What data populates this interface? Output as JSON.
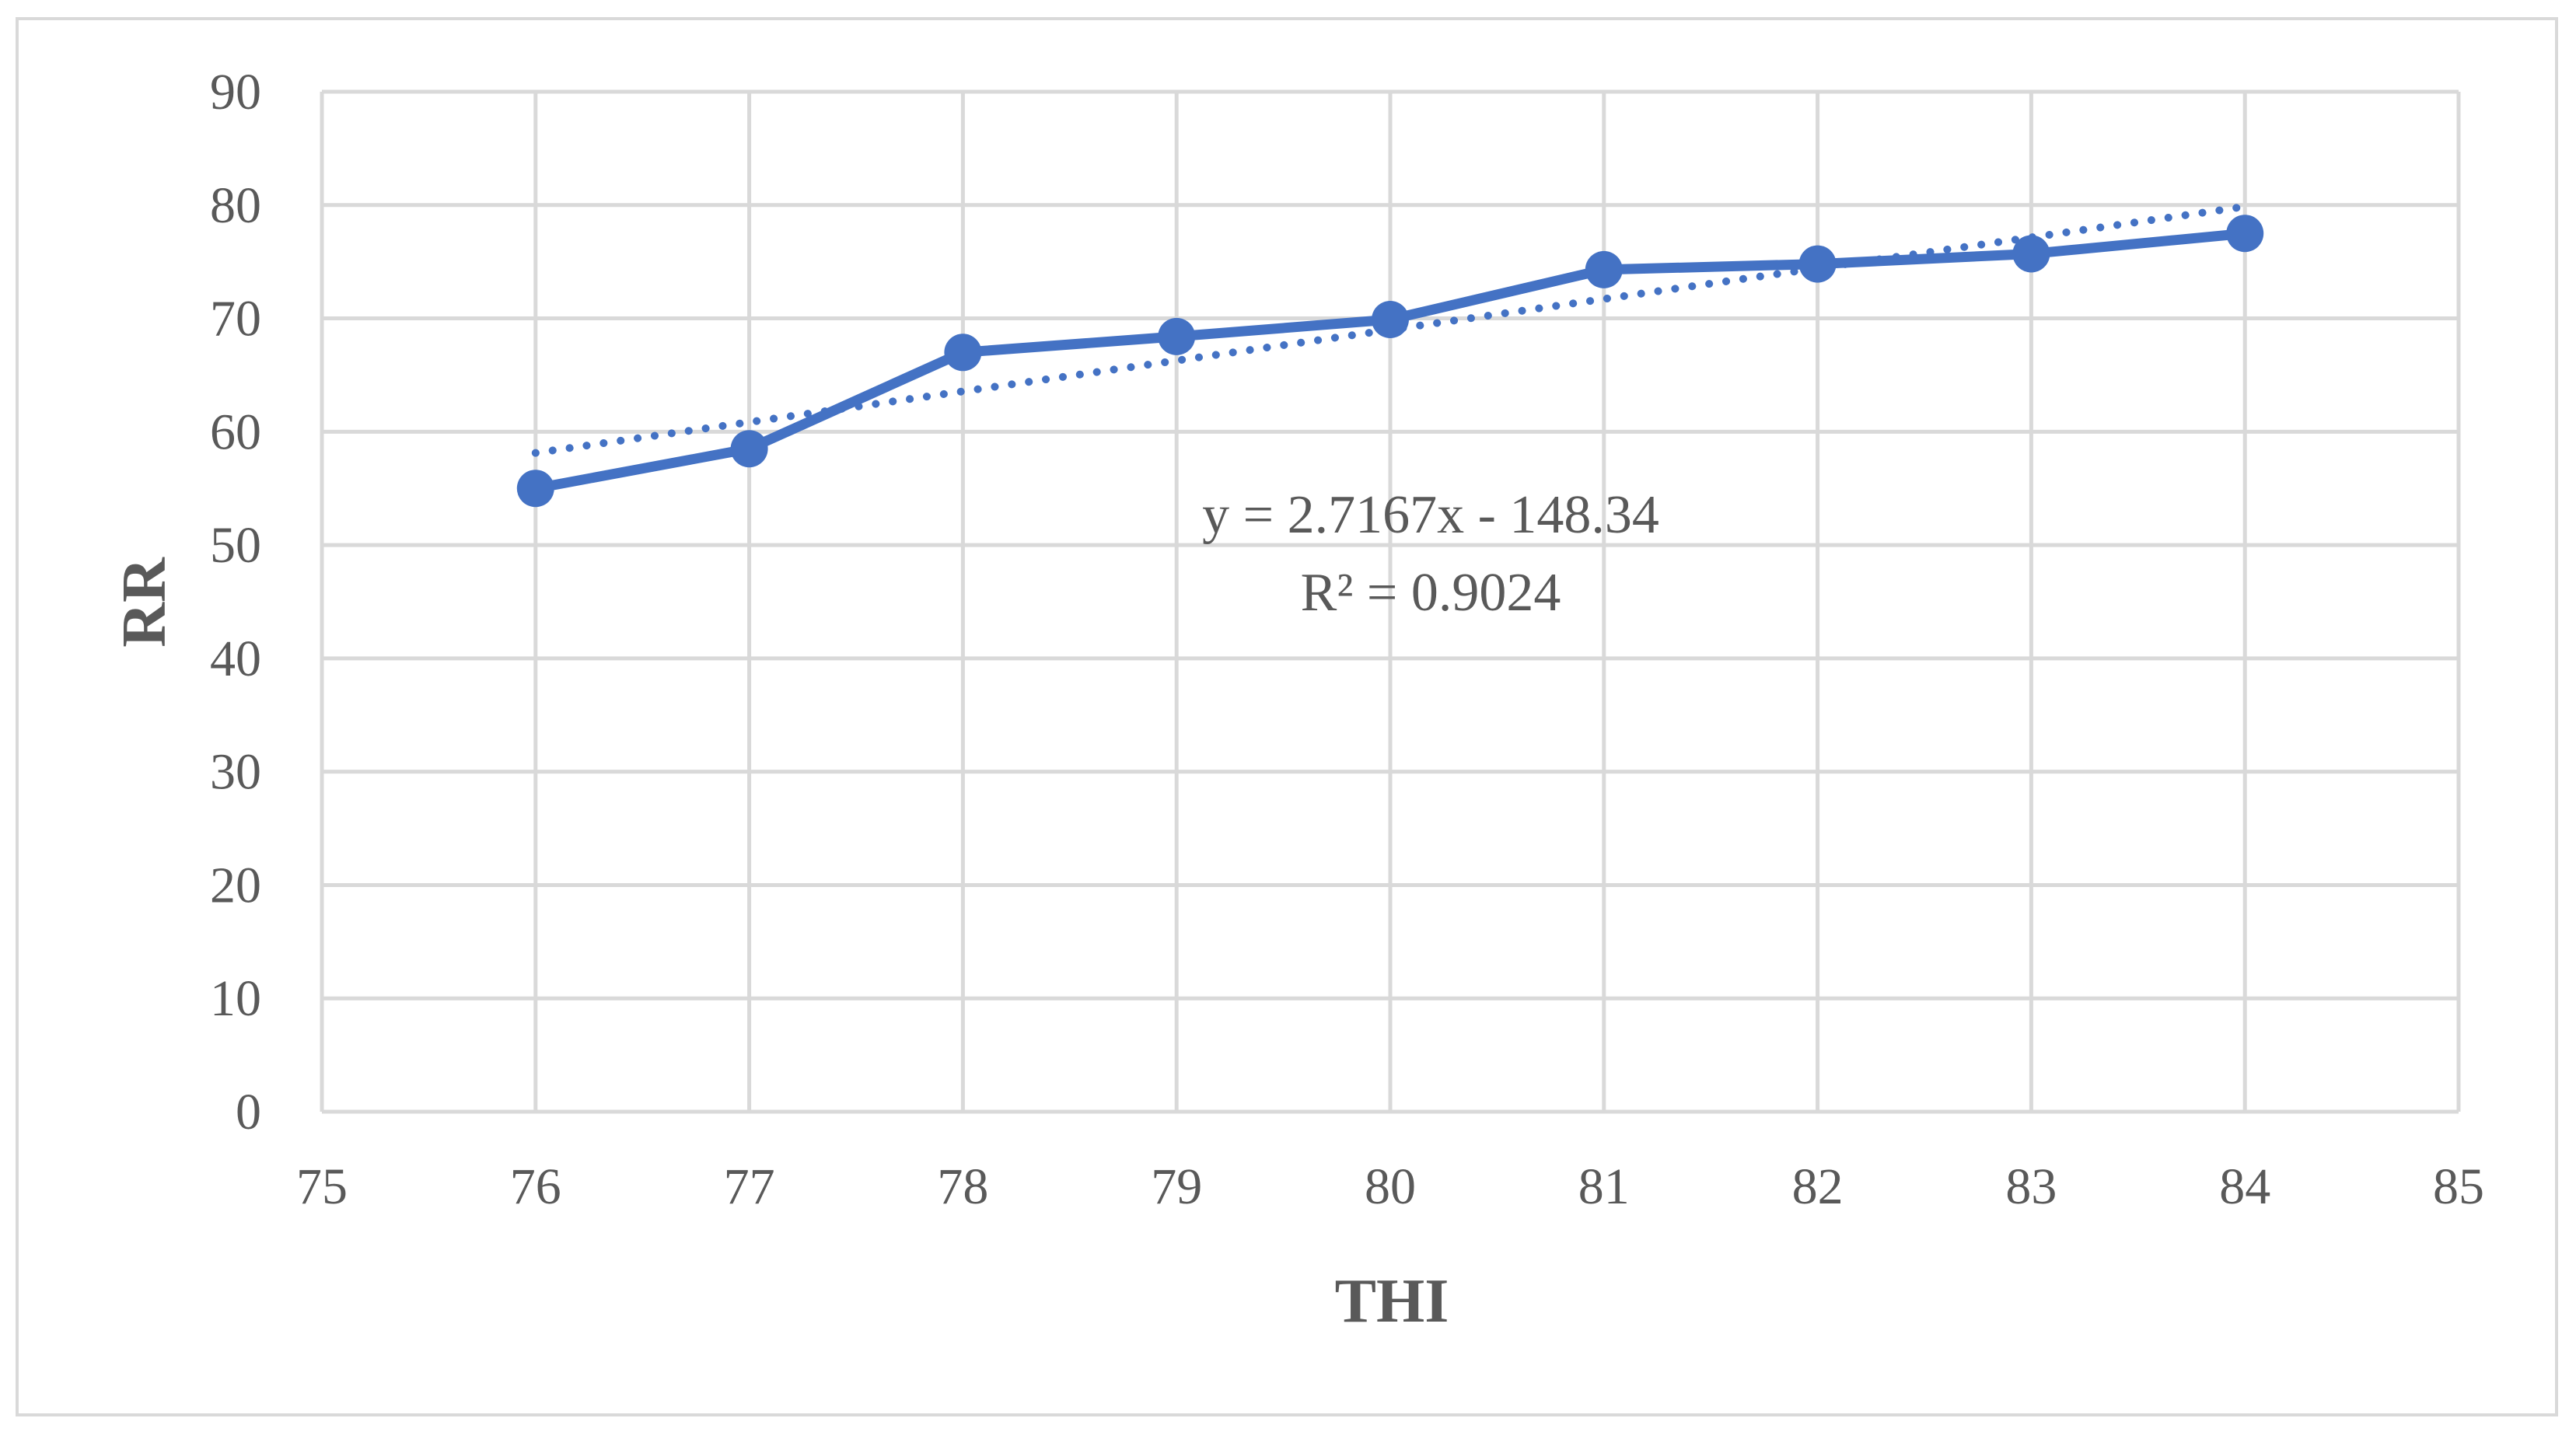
{
  "chart_data": {
    "type": "scatter",
    "xlabel": "THI",
    "ylabel": "RR",
    "xlim": [
      75,
      85
    ],
    "ylim": [
      0,
      90
    ],
    "x_ticks": [
      75,
      76,
      77,
      78,
      79,
      80,
      81,
      82,
      83,
      84,
      85
    ],
    "y_ticks": [
      0,
      10,
      20,
      30,
      40,
      50,
      60,
      70,
      80,
      90
    ],
    "grid": true,
    "legend": "none",
    "series": [
      {
        "x": [
          76,
          77,
          78,
          79,
          80,
          81,
          82,
          83,
          84
        ],
        "y": [
          55,
          58.5,
          67,
          68.4,
          69.9,
          74.3,
          74.8,
          75.7,
          77.5
        ],
        "color": "#4472c4",
        "style": "line-markers"
      }
    ],
    "trendline": {
      "type": "linear",
      "slope": 2.7167,
      "intercept": -148.34,
      "x_range": [
        76,
        84
      ],
      "style": "dotted",
      "color": "#4472c4"
    },
    "annotations": {
      "equation": "y = 2.7167x - 148.34",
      "r_squared": "R² = 0.9024"
    }
  }
}
